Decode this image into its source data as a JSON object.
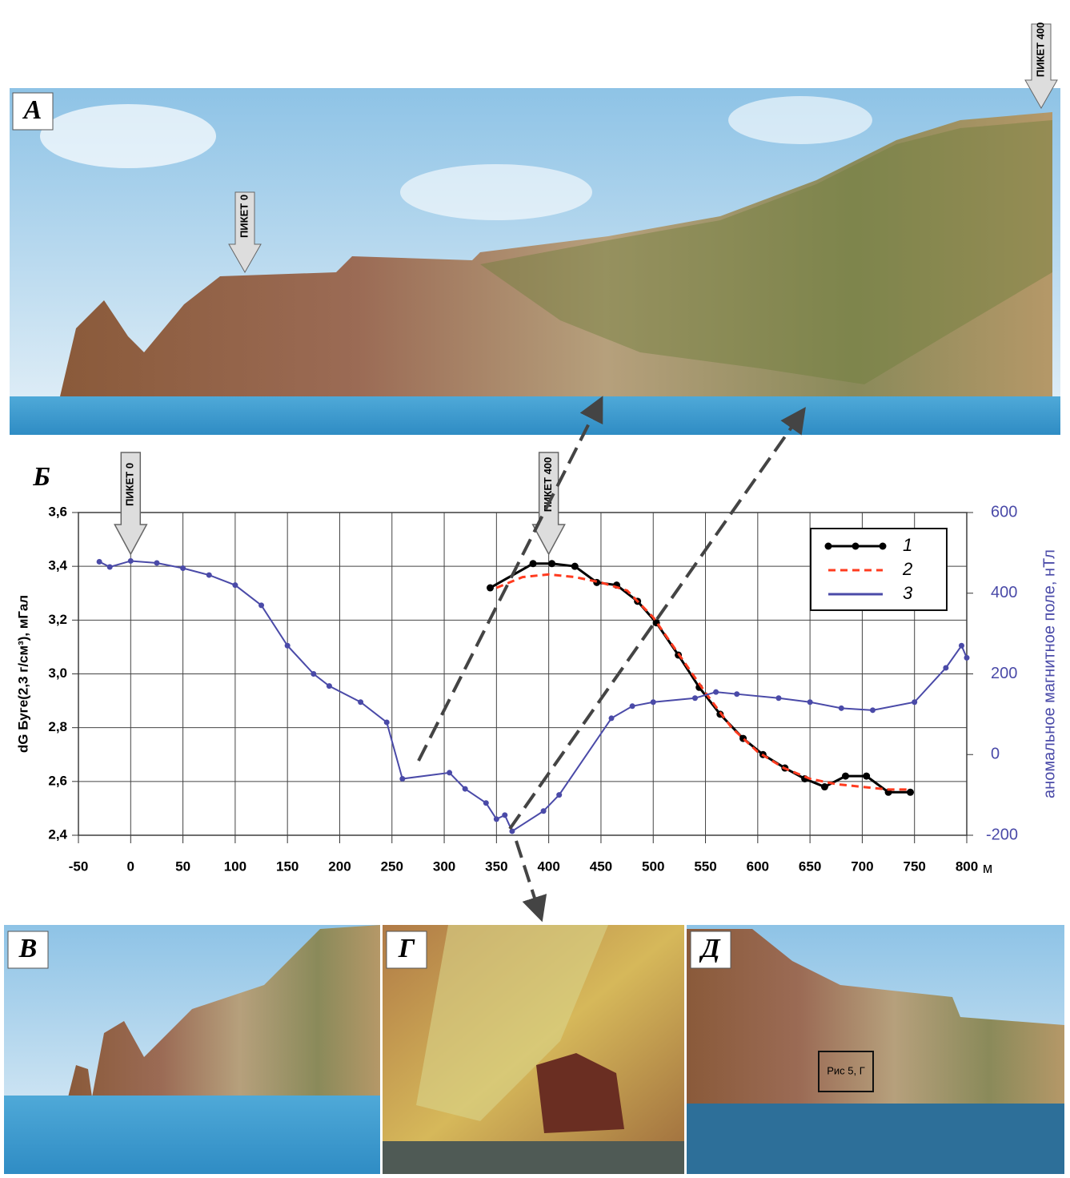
{
  "photo_a": {
    "label": "А",
    "markers": [
      "ПИКЕТ 0",
      "ПИКЕТ 400"
    ]
  },
  "chart_data": {
    "type": "line",
    "label": "Б",
    "ylabel": "dG Буге(2,3 г/см³), мГал",
    "y2label": "аномальное магнитное поле, нТл",
    "xlabel": "м",
    "xlim": [
      -50,
      800
    ],
    "xticks": [
      -50,
      0,
      50,
      100,
      150,
      200,
      250,
      300,
      350,
      400,
      450,
      500,
      550,
      600,
      650,
      700,
      750,
      800
    ],
    "ylim": [
      2.4,
      3.6
    ],
    "yticks": [
      {
        "value": 2.4,
        "label": "2,4"
      },
      {
        "value": 2.6,
        "label": "2,6"
      },
      {
        "value": 2.8,
        "label": "2,8"
      },
      {
        "value": 3.0,
        "label": "3,0"
      },
      {
        "value": 3.2,
        "label": "3,2"
      },
      {
        "value": 3.4,
        "label": "3,4"
      },
      {
        "value": 3.6,
        "label": "3,6"
      }
    ],
    "y2lim": [
      -200,
      600
    ],
    "y2ticks": [
      -200,
      0,
      200,
      400,
      600
    ],
    "grid": true,
    "legend": "upper right",
    "annotations": [
      {
        "text": "ПИКЕТ 0",
        "x": 0
      },
      {
        "text": "ПИКЕТ 400",
        "x": 400
      }
    ],
    "series": [
      {
        "name": "1",
        "color": "#000000",
        "style": "markers",
        "x": [
          344,
          385,
          403,
          425,
          446,
          465,
          485,
          503,
          524,
          544,
          564,
          586,
          605,
          626,
          645,
          664,
          684,
          704,
          725,
          746
        ],
        "values": [
          3.32,
          3.41,
          3.41,
          3.4,
          3.34,
          3.33,
          3.27,
          3.19,
          3.07,
          2.95,
          2.85,
          2.76,
          2.7,
          2.65,
          2.61,
          2.58,
          2.62,
          2.62,
          2.56,
          2.56
        ]
      },
      {
        "name": "2",
        "color": "#ff3b1f",
        "style": "dashed",
        "x": [
          350,
          375,
          400,
          425,
          450,
          475,
          500,
          525,
          550,
          575,
          600,
          625,
          650,
          675,
          700,
          725,
          745
        ],
        "values": [
          3.32,
          3.36,
          3.37,
          3.36,
          3.34,
          3.31,
          3.21,
          3.07,
          2.93,
          2.8,
          2.71,
          2.65,
          2.61,
          2.59,
          2.58,
          2.57,
          2.57
        ]
      },
      {
        "name": "3",
        "color": "#4a4aa8",
        "style": "dotted",
        "axis": "y2",
        "x": [
          -30,
          -20,
          0,
          25,
          50,
          75,
          100,
          125,
          150,
          175,
          190,
          220,
          245,
          260,
          305,
          320,
          340,
          350,
          358,
          365,
          395,
          410,
          460,
          480,
          500,
          540,
          560,
          580,
          620,
          650,
          680,
          710,
          750,
          780,
          795,
          800
        ],
        "values": [
          478,
          465,
          480,
          475,
          462,
          445,
          420,
          370,
          270,
          200,
          170,
          130,
          80,
          -60,
          -45,
          -85,
          -120,
          -160,
          -150,
          -190,
          -140,
          -100,
          90,
          120,
          130,
          140,
          155,
          150,
          140,
          130,
          115,
          110,
          130,
          215,
          270,
          240
        ]
      }
    ]
  },
  "photos": [
    {
      "label": "В"
    },
    {
      "label": "Г"
    },
    {
      "label": "Д",
      "note": "Рис 5, Г"
    }
  ]
}
